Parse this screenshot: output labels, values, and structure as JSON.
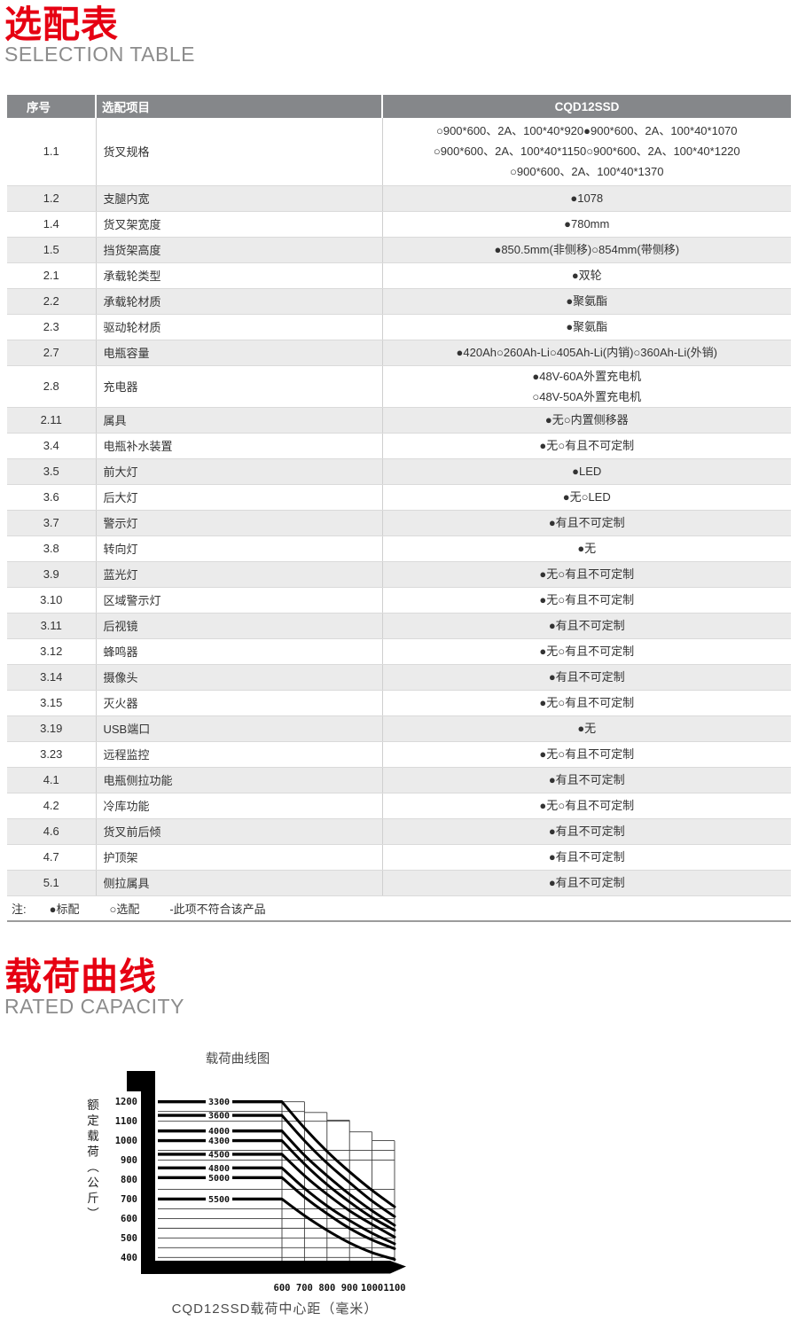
{
  "sections": {
    "selection": {
      "title_zh": "选配表",
      "title_en": "SELECTION TABLE"
    },
    "capacity": {
      "title_zh": "载荷曲线",
      "title_en": "RATED CAPACITY"
    }
  },
  "table": {
    "headers": [
      "序号",
      "选配项目",
      "CQD12SSD"
    ],
    "rows": [
      {
        "no": "1.1",
        "item": "货叉规格",
        "value_lines": [
          "○900*600、2A、100*40*920●900*600、2A、100*40*1070",
          "○900*600、2A、100*40*1150○900*600、2A、100*40*1220",
          "○900*600、2A、100*40*1370"
        ]
      },
      {
        "no": "1.2",
        "item": "支腿内宽",
        "value_lines": [
          "●1078"
        ]
      },
      {
        "no": "1.4",
        "item": "货叉架宽度",
        "value_lines": [
          "●780mm"
        ]
      },
      {
        "no": "1.5",
        "item": "挡货架高度",
        "value_lines": [
          "●850.5mm(非侧移)○854mm(带侧移)"
        ]
      },
      {
        "no": "2.1",
        "item": "承载轮类型",
        "value_lines": [
          "●双轮"
        ]
      },
      {
        "no": "2.2",
        "item": "承载轮材质",
        "value_lines": [
          "●聚氨酯"
        ]
      },
      {
        "no": "2.3",
        "item": "驱动轮材质",
        "value_lines": [
          "●聚氨酯"
        ]
      },
      {
        "no": "2.7",
        "item": "电瓶容量",
        "value_lines": [
          "●420Ah○260Ah-Li○405Ah-Li(内销)○360Ah-Li(外销)"
        ]
      },
      {
        "no": "2.8",
        "item": "充电器",
        "value_lines": [
          "●48V-60A外置充电机",
          "○48V-50A外置充电机"
        ]
      },
      {
        "no": "2.11",
        "item": "属具",
        "value_lines": [
          "●无○内置侧移器"
        ]
      },
      {
        "no": "3.4",
        "item": "电瓶补水装置",
        "value_lines": [
          "●无○有且不可定制"
        ]
      },
      {
        "no": "3.5",
        "item": "前大灯",
        "value_lines": [
          "●LED"
        ]
      },
      {
        "no": "3.6",
        "item": "后大灯",
        "value_lines": [
          "●无○LED"
        ]
      },
      {
        "no": "3.7",
        "item": "警示灯",
        "value_lines": [
          "●有且不可定制"
        ]
      },
      {
        "no": "3.8",
        "item": "转向灯",
        "value_lines": [
          "●无"
        ]
      },
      {
        "no": "3.9",
        "item": "蓝光灯",
        "value_lines": [
          "●无○有且不可定制"
        ]
      },
      {
        "no": "3.10",
        "item": "区域警示灯",
        "value_lines": [
          "●无○有且不可定制"
        ]
      },
      {
        "no": "3.11",
        "item": "后视镜",
        "value_lines": [
          "●有且不可定制"
        ]
      },
      {
        "no": "3.12",
        "item": "蜂鸣器",
        "value_lines": [
          "●无○有且不可定制"
        ]
      },
      {
        "no": "3.14",
        "item": "摄像头",
        "value_lines": [
          "●有且不可定制"
        ]
      },
      {
        "no": "3.15",
        "item": "灭火器",
        "value_lines": [
          "●无○有且不可定制"
        ]
      },
      {
        "no": "3.19",
        "item": "USB端口",
        "value_lines": [
          "●无"
        ]
      },
      {
        "no": "3.23",
        "item": "远程监控",
        "value_lines": [
          "●无○有且不可定制"
        ]
      },
      {
        "no": "4.1",
        "item": "电瓶侧拉功能",
        "value_lines": [
          "●有且不可定制"
        ]
      },
      {
        "no": "4.2",
        "item": "冷库功能",
        "value_lines": [
          "●无○有且不可定制"
        ]
      },
      {
        "no": "4.6",
        "item": "货叉前后倾",
        "value_lines": [
          "●有且不可定制"
        ]
      },
      {
        "no": "4.7",
        "item": "护顶架",
        "value_lines": [
          "●有且不可定制"
        ]
      },
      {
        "no": "5.1",
        "item": "侧拉属具",
        "value_lines": [
          "●有且不可定制"
        ]
      }
    ],
    "note": {
      "label": "注:",
      "items": [
        "●标配",
        "○选配",
        "-此项不符合该产品"
      ]
    }
  },
  "colors": {
    "accent_red": "#e60012",
    "header_bg": "#85878a",
    "row_shade": "#ebebeb"
  },
  "chart_data": {
    "type": "line",
    "title": "载荷曲线图",
    "xlabel": "CQD12SSD载荷中心距（毫米）",
    "ylabel": "额定载荷（公斤）",
    "x": [
      600,
      700,
      800,
      900,
      1000,
      1100
    ],
    "x_ticks": [
      600,
      700,
      800,
      900,
      1000,
      1100
    ],
    "y_ticks": [
      400,
      500,
      600,
      700,
      800,
      900,
      1000,
      1100,
      1200
    ],
    "xlim": [
      600,
      1100
    ],
    "ylim": [
      400,
      1200
    ],
    "grid": true,
    "legend_position": "inline-labels-on-lines",
    "series": [
      {
        "name": "3300",
        "values": [
          1200,
          1065,
          945,
          840,
          745,
          660
        ]
      },
      {
        "name": "3600",
        "values": [
          1130,
          1000,
          885,
          785,
          690,
          610
        ]
      },
      {
        "name": "4000",
        "values": [
          1050,
          925,
          820,
          725,
          640,
          565
        ]
      },
      {
        "name": "4300",
        "values": [
          1000,
          880,
          775,
          685,
          605,
          540
        ]
      },
      {
        "name": "4500",
        "values": [
          930,
          820,
          725,
          640,
          570,
          505
        ]
      },
      {
        "name": "4800",
        "values": [
          860,
          755,
          665,
          590,
          525,
          470
        ]
      },
      {
        "name": "5000",
        "values": [
          810,
          710,
          625,
          550,
          490,
          445
        ]
      },
      {
        "name": "5500",
        "values": [
          700,
          615,
          540,
          475,
          425,
          390
        ]
      }
    ],
    "envelope_tops": {
      "600": 1200,
      "700": 1200,
      "800": 1145,
      "900": 1105,
      "1000": 1045,
      "1100": 1000
    }
  }
}
